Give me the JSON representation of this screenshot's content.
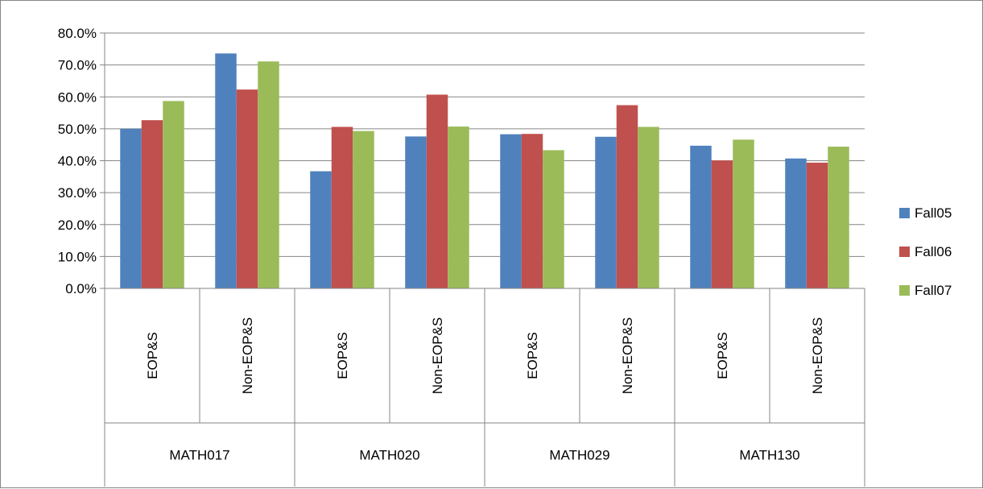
{
  "chart_data": {
    "type": "bar",
    "title": "",
    "xlabel": "",
    "ylabel": "",
    "ylim": [
      0,
      80
    ],
    "y_ticks": [
      0,
      10,
      20,
      30,
      40,
      50,
      60,
      70,
      80
    ],
    "y_tick_labels": [
      "0.0%",
      "10.0%",
      "20.0%",
      "30.0%",
      "40.0%",
      "50.0%",
      "60.0%",
      "70.0%",
      "80.0%"
    ],
    "grid": true,
    "legend_position": "right",
    "groups": [
      "MATH017",
      "MATH020",
      "MATH029",
      "MATH130"
    ],
    "categories": [
      "EOP&S",
      "Non-EOP&S",
      "EOP&S",
      "Non-EOP&S",
      "EOP&S",
      "Non-EOP&S",
      "EOP&S",
      "Non-EOP&S"
    ],
    "series": [
      {
        "name": "Fall05",
        "color": "#4F81BD",
        "values": [
          50.0,
          73.6,
          36.7,
          47.6,
          48.3,
          47.5,
          44.7,
          40.7
        ]
      },
      {
        "name": "Fall06",
        "color": "#C0504D",
        "values": [
          52.7,
          62.3,
          50.6,
          60.7,
          48.4,
          57.4,
          40.1,
          39.4
        ]
      },
      {
        "name": "Fall07",
        "color": "#9BBB59",
        "values": [
          58.7,
          71.1,
          49.3,
          50.7,
          43.3,
          50.6,
          46.6,
          44.4
        ]
      }
    ]
  }
}
